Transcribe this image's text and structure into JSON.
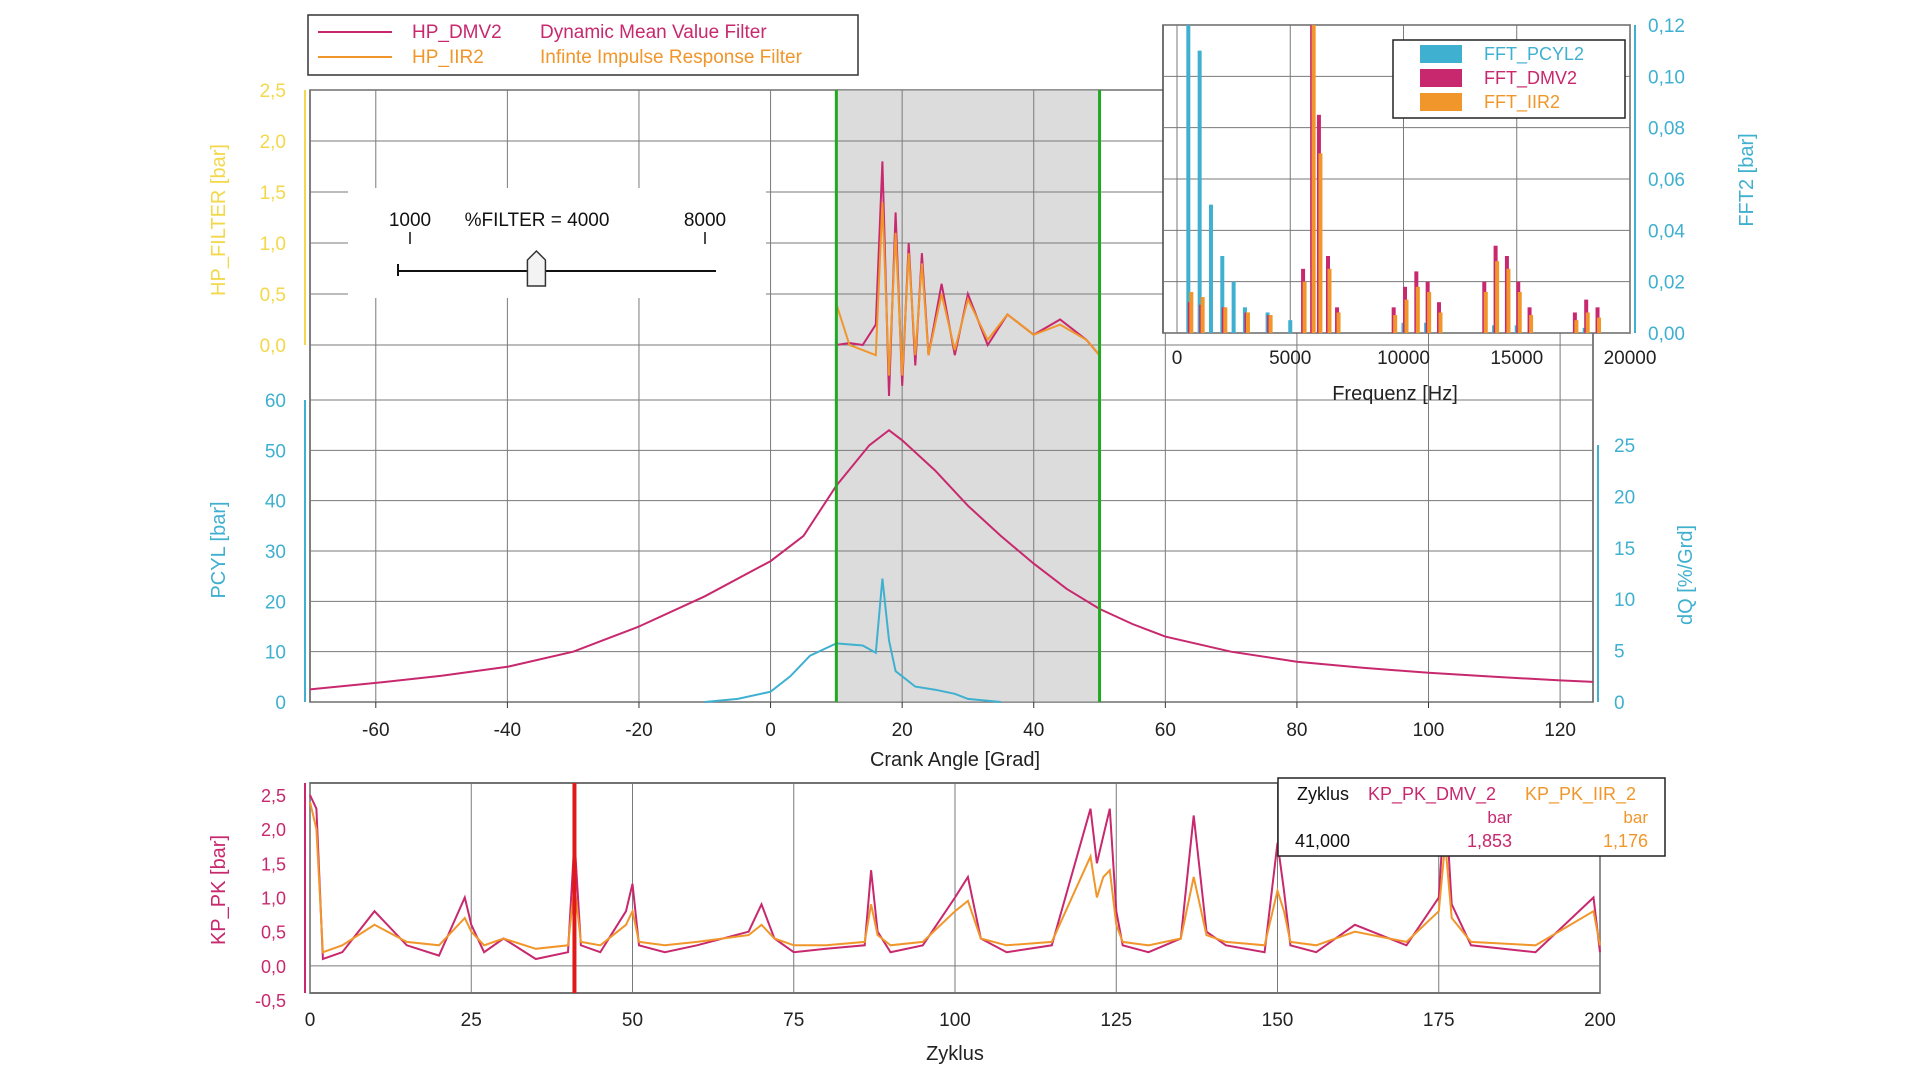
{
  "colors": {
    "dmv": "#c8286e",
    "iir": "#f0962a",
    "cyan": "#3fb0d0",
    "yellow": "#f2d84a",
    "green": "#22a922",
    "red": "#e01818",
    "grid": "#7a7a7a",
    "shade": "#dcdcdc"
  },
  "legend_top": [
    {
      "name": "HP_DMV2",
      "desc": "Dynamic Mean Value Filter",
      "color": "#c8286e"
    },
    {
      "name": "HP_IIR2",
      "desc": "Infinte Impulse Response Filter",
      "color": "#f0962a"
    }
  ],
  "slider": {
    "min_label": "1000",
    "value_label": "%FILTER = 4000",
    "max_label": "8000",
    "min": 1000,
    "max": 8000,
    "value": 4000
  },
  "fft_legend": [
    "FFT_PCYL2",
    "FFT_DMV2",
    "FFT_IIR2"
  ],
  "value_table": {
    "col0_header": "Zyklus",
    "col1_header": "KP_PK_DMV_2",
    "col2_header": "KP_PK_IIR_2",
    "col1_unit": "bar",
    "col2_unit": "bar",
    "col0_value": "41,000",
    "col1_value": "1,853",
    "col2_value": "1,176"
  },
  "chart_data": [
    {
      "id": "main",
      "type": "line",
      "xlabel": "Crank Angle [Grad]",
      "x_ticks": [
        "-60",
        "-40",
        "-20",
        "0",
        "20",
        "40",
        "60",
        "80",
        "100",
        "120"
      ],
      "xlim": [
        -70,
        125
      ],
      "y_axes": [
        {
          "label": "HP_FILTER [bar]",
          "ticks": [
            "0,0",
            "0,5",
            "1,0",
            "1,5",
            "2,0",
            "2,5"
          ],
          "ylim": [
            0,
            2.5
          ]
        },
        {
          "label": "PCYL [bar]",
          "ticks": [
            "0",
            "10",
            "20",
            "30",
            "40",
            "50",
            "60"
          ],
          "ylim": [
            0,
            60
          ]
        },
        {
          "label": "dQ [%/Grd]",
          "ticks": [
            "0",
            "5",
            "10",
            "15",
            "20",
            "25"
          ],
          "ylim": [
            0,
            25
          ]
        }
      ],
      "shaded_window": [
        10,
        50
      ],
      "window_markers": [
        10,
        50
      ],
      "series": [
        {
          "name": "PCYL",
          "axis": "PCYL [bar]",
          "x": [
            -70,
            -60,
            -50,
            -40,
            -30,
            -20,
            -10,
            0,
            5,
            10,
            15,
            18,
            20,
            25,
            30,
            35,
            40,
            45,
            50,
            55,
            60,
            70,
            80,
            90,
            100,
            110,
            120,
            125
          ],
          "y": [
            2.5,
            3.8,
            5.2,
            7.0,
            10.0,
            15.0,
            21.0,
            28.0,
            33.0,
            43.0,
            51.0,
            54.0,
            52.0,
            46.0,
            39.0,
            33.0,
            27.5,
            22.5,
            18.5,
            15.5,
            13.0,
            10.0,
            8.0,
            6.8,
            5.8,
            5.0,
            4.3,
            4.0
          ]
        },
        {
          "name": "dQ",
          "axis": "dQ [%/Grd]",
          "x": [
            -10,
            -5,
            0,
            3,
            6,
            10,
            14,
            16,
            17,
            18,
            19,
            20,
            22,
            25,
            28,
            30,
            35
          ],
          "y": [
            0,
            0.3,
            1.0,
            2.5,
            4.5,
            5.7,
            5.5,
            4.8,
            12.0,
            6.0,
            3.0,
            2.5,
            1.5,
            1.2,
            0.8,
            0.3,
            0
          ]
        },
        {
          "name": "HP_DMV2",
          "axis": "HP_FILTER [bar]",
          "x": [
            10,
            12,
            14,
            16,
            17,
            18,
            19,
            20,
            21,
            22,
            23,
            24,
            26,
            28,
            30,
            33,
            36,
            40,
            44,
            48,
            50
          ],
          "y": [
            0.0,
            0.02,
            0.0,
            0.2,
            1.8,
            -0.5,
            1.3,
            -0.4,
            1.0,
            -0.2,
            0.9,
            -0.1,
            0.6,
            -0.1,
            0.5,
            0.0,
            0.3,
            0.1,
            0.25,
            0.05,
            -0.1
          ]
        },
        {
          "name": "HP_IIR2",
          "axis": "HP_FILTER [bar]",
          "x": [
            10,
            12,
            14,
            16,
            17,
            18,
            19,
            20,
            21,
            22,
            23,
            24,
            26,
            28,
            30,
            33,
            36,
            40,
            44,
            48,
            50
          ],
          "y": [
            0.4,
            0.0,
            -0.05,
            -0.1,
            1.4,
            -0.3,
            1.1,
            -0.3,
            0.9,
            -0.1,
            0.8,
            -0.1,
            0.5,
            -0.05,
            0.45,
            0.05,
            0.3,
            0.1,
            0.2,
            0.05,
            -0.1
          ]
        }
      ]
    },
    {
      "id": "fft",
      "type": "bar",
      "xlabel": "Frequenz [Hz]",
      "ylabel": "FFT2 [bar]",
      "x_ticks": [
        "0",
        "5000",
        "10000",
        "15000",
        "20000"
      ],
      "y_ticks": [
        "0,00",
        "0,02",
        "0,04",
        "0,06",
        "0,08",
        "0,10",
        "0,12"
      ],
      "xlim": [
        0,
        20000
      ],
      "ylim": [
        0,
        0.12
      ],
      "series": [
        {
          "name": "FFT_PCYL2",
          "x": [
            500,
            1000,
            1500,
            2000,
            2500,
            3000,
            4000,
            5000,
            6000,
            10000,
            11000,
            14000,
            15000,
            18000
          ],
          "y": [
            0.12,
            0.11,
            0.05,
            0.03,
            0.02,
            0.01,
            0.008,
            0.005,
            0.005,
            0.004,
            0.004,
            0.003,
            0.003,
            0.002
          ]
        },
        {
          "name": "FFT_DMV2",
          "x": [
            500,
            1000,
            2000,
            3000,
            4000,
            5500,
            5900,
            6200,
            6600,
            7000,
            9500,
            10000,
            10500,
            11000,
            11500,
            13500,
            14000,
            14500,
            15000,
            15500,
            17500,
            18000,
            18500
          ],
          "y": [
            0.012,
            0.011,
            0.01,
            0.008,
            0.007,
            0.025,
            0.12,
            0.085,
            0.03,
            0.01,
            0.01,
            0.018,
            0.024,
            0.02,
            0.012,
            0.02,
            0.034,
            0.03,
            0.02,
            0.01,
            0.008,
            0.013,
            0.01
          ]
        },
        {
          "name": "FFT_IIR2",
          "x": [
            500,
            1000,
            2000,
            3000,
            4000,
            5500,
            5900,
            6200,
            6600,
            7000,
            9500,
            10000,
            10500,
            11000,
            11500,
            13500,
            14000,
            14500,
            15000,
            15500,
            17500,
            18000,
            18500
          ],
          "y": [
            0.016,
            0.014,
            0.01,
            0.008,
            0.007,
            0.02,
            0.12,
            0.07,
            0.025,
            0.008,
            0.007,
            0.013,
            0.018,
            0.016,
            0.008,
            0.016,
            0.028,
            0.025,
            0.016,
            0.007,
            0.005,
            0.008,
            0.006
          ]
        }
      ]
    },
    {
      "id": "cycles",
      "type": "line",
      "xlabel": "Zyklus",
      "ylabel": "KP_PK [bar]",
      "x_ticks": [
        "0",
        "25",
        "50",
        "75",
        "100",
        "125",
        "150",
        "175",
        "200"
      ],
      "y_ticks": [
        "-0,5",
        "0,0",
        "0,5",
        "1,0",
        "1,5",
        "2,0",
        "2,5"
      ],
      "xlim": [
        0,
        200
      ],
      "ylim": [
        -0.5,
        2.5
      ],
      "cursor_x": 41,
      "series": [
        {
          "name": "KP_PK_DMV_2",
          "x": [
            0,
            1,
            2,
            5,
            10,
            15,
            20,
            24,
            25,
            27,
            30,
            35,
            40,
            41,
            42,
            45,
            49,
            50,
            51,
            55,
            60,
            68,
            70,
            72,
            75,
            80,
            86,
            87,
            88,
            90,
            95,
            100,
            102,
            104,
            108,
            115,
            121,
            122,
            123,
            124,
            125,
            126,
            130,
            135,
            137,
            139,
            142,
            148,
            150,
            151,
            152,
            156,
            162,
            170,
            175,
            176,
            177,
            180,
            190,
            199,
            200
          ],
          "y": [
            2.5,
            2.3,
            0.1,
            0.2,
            0.8,
            0.3,
            0.15,
            1.0,
            0.6,
            0.2,
            0.4,
            0.1,
            0.2,
            1.85,
            0.3,
            0.2,
            0.8,
            1.2,
            0.3,
            0.2,
            0.3,
            0.5,
            0.9,
            0.4,
            0.2,
            0.25,
            0.3,
            1.4,
            0.5,
            0.2,
            0.3,
            1.0,
            1.3,
            0.4,
            0.2,
            0.3,
            2.3,
            1.5,
            1.9,
            2.3,
            0.8,
            0.3,
            0.2,
            0.4,
            2.2,
            0.5,
            0.3,
            0.2,
            1.8,
            1.1,
            0.3,
            0.2,
            0.6,
            0.3,
            1.0,
            2.5,
            0.9,
            0.3,
            0.2,
            1.0,
            0.2
          ]
        },
        {
          "name": "KP_PK_IIR_2",
          "x": [
            0,
            1,
            2,
            5,
            10,
            15,
            20,
            24,
            25,
            27,
            30,
            35,
            40,
            41,
            42,
            45,
            49,
            50,
            51,
            55,
            60,
            68,
            70,
            72,
            75,
            80,
            86,
            87,
            88,
            90,
            95,
            100,
            102,
            104,
            108,
            115,
            121,
            122,
            123,
            124,
            125,
            126,
            130,
            135,
            137,
            139,
            142,
            148,
            150,
            151,
            152,
            156,
            162,
            170,
            175,
            176,
            177,
            180,
            190,
            199,
            200
          ],
          "y": [
            2.4,
            2.0,
            0.2,
            0.3,
            0.6,
            0.35,
            0.3,
            0.7,
            0.5,
            0.3,
            0.4,
            0.25,
            0.3,
            1.18,
            0.35,
            0.3,
            0.6,
            0.8,
            0.35,
            0.3,
            0.35,
            0.45,
            0.6,
            0.4,
            0.3,
            0.3,
            0.35,
            0.9,
            0.45,
            0.3,
            0.35,
            0.8,
            0.95,
            0.4,
            0.3,
            0.35,
            1.6,
            1.0,
            1.3,
            1.4,
            0.6,
            0.35,
            0.3,
            0.4,
            1.3,
            0.45,
            0.35,
            0.3,
            1.1,
            0.8,
            0.35,
            0.3,
            0.5,
            0.35,
            0.8,
            1.8,
            0.7,
            0.35,
            0.3,
            0.8,
            0.3
          ]
        }
      ]
    }
  ]
}
